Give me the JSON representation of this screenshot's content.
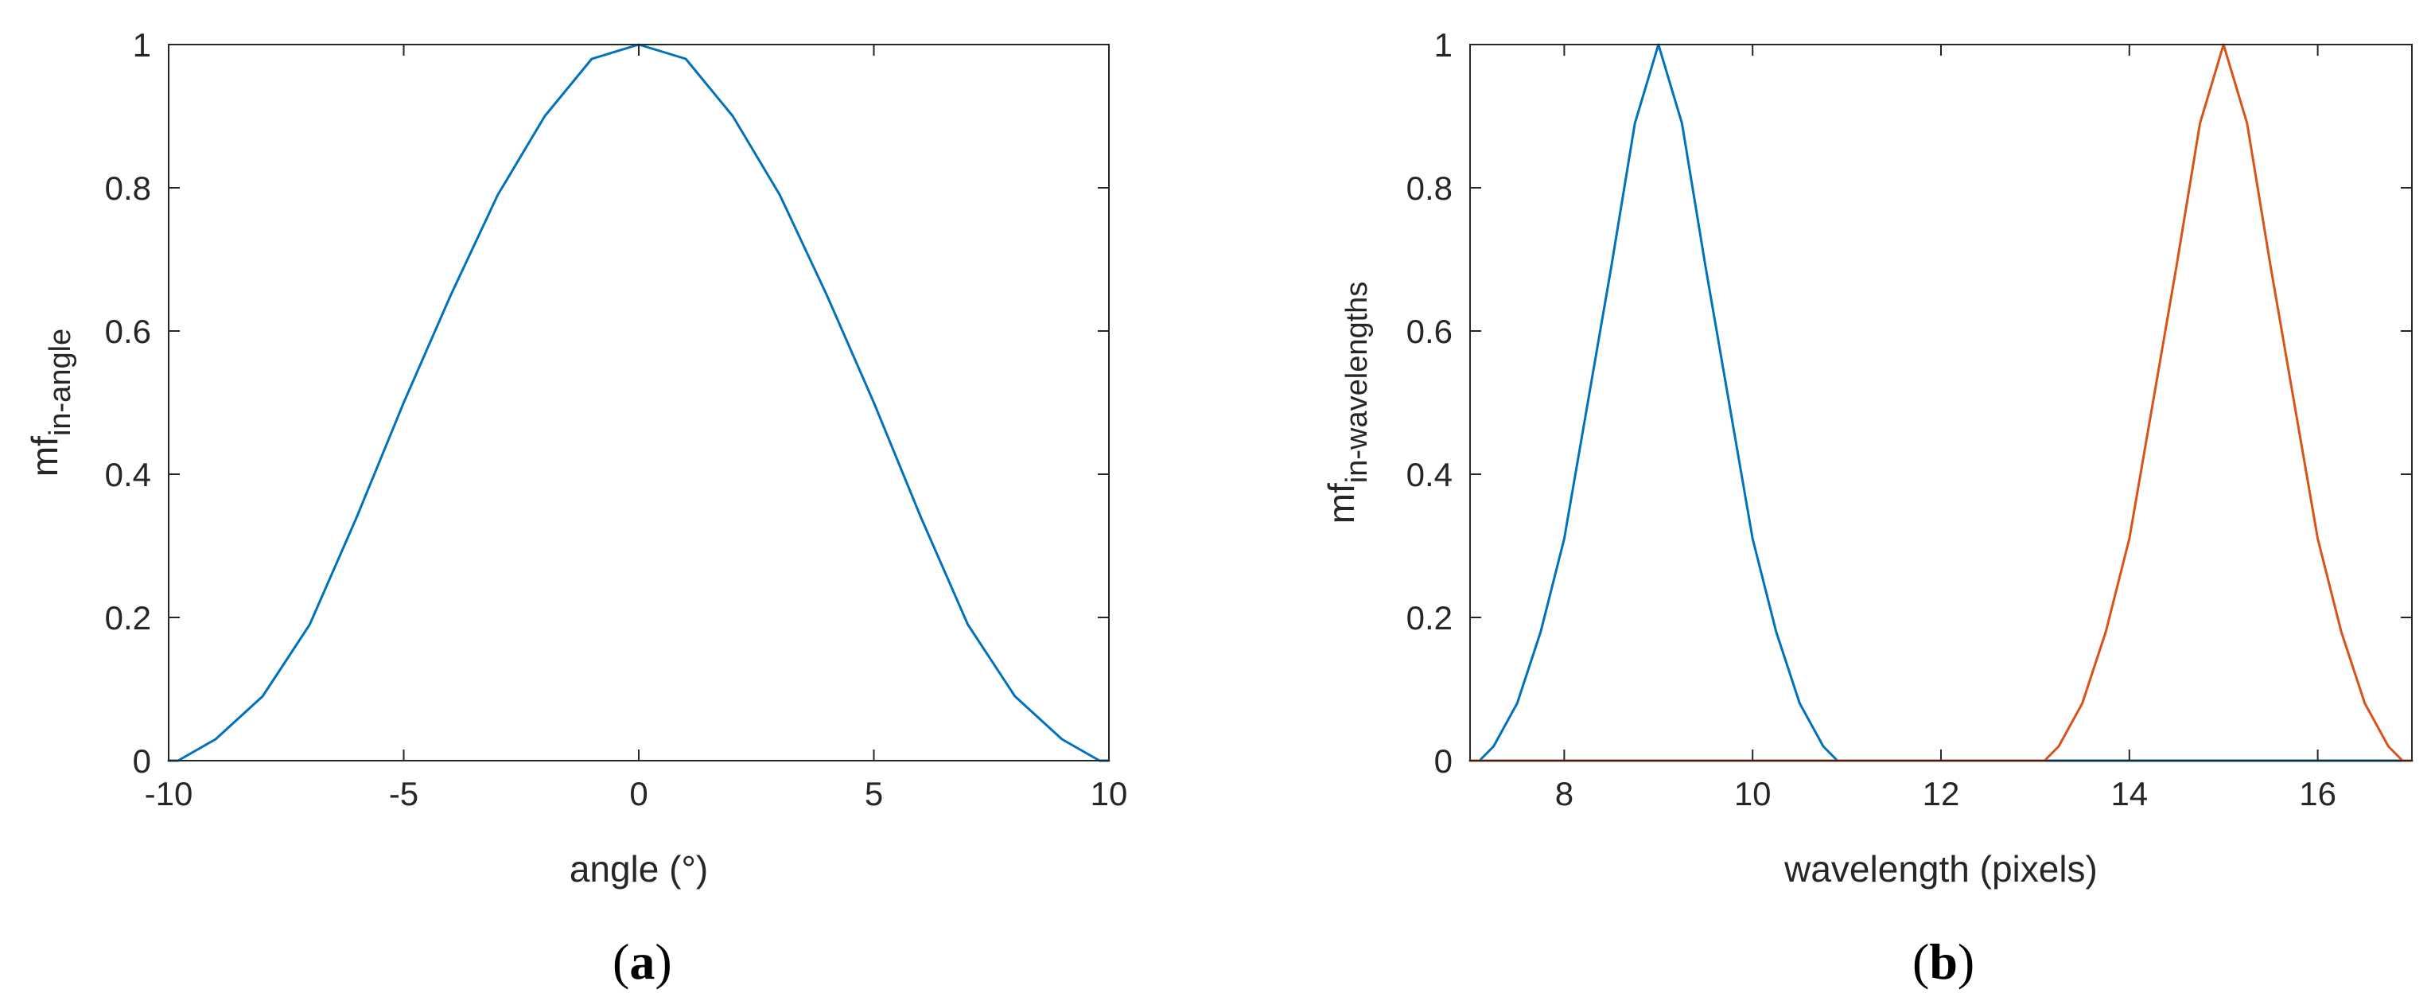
{
  "chart_data": [
    {
      "type": "line",
      "panel_label": "a",
      "xlabel": "angle (°)",
      "ylabel_main": "mf",
      "ylabel_sub": "in-angle",
      "xlim": [
        -10,
        10
      ],
      "ylim": [
        0,
        1
      ],
      "xticks": [
        -10,
        -5,
        0,
        5,
        10
      ],
      "xtick_labels": [
        "-10",
        "-5",
        "0",
        "5",
        "10"
      ],
      "yticks": [
        0,
        0.2,
        0.4,
        0.6,
        0.8,
        1
      ],
      "ytick_labels": [
        "0",
        "0.2",
        "0.4",
        "0.6",
        "0.8",
        "1"
      ],
      "grid": false,
      "series": [
        {
          "color": "#0072BD",
          "x": [
            -10,
            -9.8,
            -9,
            -8,
            -7,
            -6,
            -5,
            -4,
            -3,
            -2,
            -1,
            0,
            1,
            2,
            3,
            4,
            5,
            6,
            7,
            8,
            9,
            9.8,
            10
          ],
          "y": [
            0,
            0,
            0.03,
            0.09,
            0.19,
            0.34,
            0.5,
            0.65,
            0.79,
            0.9,
            0.98,
            1,
            0.98,
            0.9,
            0.79,
            0.65,
            0.5,
            0.34,
            0.19,
            0.09,
            0.03,
            0,
            0
          ]
        }
      ]
    },
    {
      "type": "line",
      "panel_label": "b",
      "xlabel": "wavelength (pixels)",
      "ylabel_main": "mf",
      "ylabel_sub": "in-wavelengths",
      "xlim": [
        7,
        17
      ],
      "ylim": [
        0,
        1
      ],
      "xticks": [
        8,
        10,
        12,
        14,
        16
      ],
      "xtick_labels": [
        "8",
        "10",
        "12",
        "14",
        "16"
      ],
      "yticks": [
        0,
        0.2,
        0.4,
        0.6,
        0.8,
        1
      ],
      "ytick_labels": [
        "0",
        "0.2",
        "0.4",
        "0.6",
        "0.8",
        "1"
      ],
      "grid": false,
      "series": [
        {
          "color": "#0072BD",
          "x": [
            7,
            7.1,
            7.25,
            7.5,
            7.75,
            8,
            8.25,
            8.5,
            8.75,
            9,
            9.25,
            9.5,
            9.75,
            10,
            10.25,
            10.5,
            10.75,
            10.9,
            11,
            13,
            15,
            17
          ],
          "y": [
            0,
            0,
            0.02,
            0.08,
            0.18,
            0.31,
            0.5,
            0.69,
            0.89,
            1,
            0.89,
            0.69,
            0.5,
            0.31,
            0.18,
            0.08,
            0.02,
            0,
            0,
            0,
            0,
            0
          ]
        },
        {
          "color": "#D95319",
          "x": [
            7,
            9,
            11,
            13,
            13.1,
            13.25,
            13.5,
            13.75,
            14,
            14.25,
            14.5,
            14.75,
            15,
            15.25,
            15.5,
            15.75,
            16,
            16.25,
            16.5,
            16.75,
            16.9,
            17
          ],
          "y": [
            0,
            0,
            0,
            0,
            0,
            0.02,
            0.08,
            0.18,
            0.31,
            0.5,
            0.69,
            0.89,
            1,
            0.89,
            0.69,
            0.5,
            0.31,
            0.18,
            0.08,
            0.02,
            0,
            0
          ]
        }
      ]
    }
  ]
}
